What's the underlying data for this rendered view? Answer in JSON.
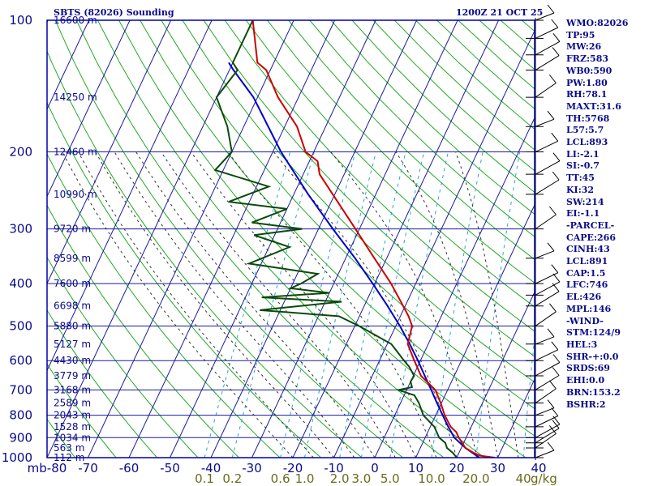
{
  "header": {
    "station": "SBTS (82026) Sounding",
    "datetime": "1200Z 21 OCT 25"
  },
  "indices": [
    "WMO:82026",
    "TP:95",
    "MW:26",
    "FRZ:583",
    "WB0:590",
    "PW:1.80",
    "RH:78.1",
    "MAXT:31.6",
    "TH:5768",
    "L57:5.7",
    "LCL:893",
    "LI:-2.1",
    "SI:-0.7",
    "TT:45",
    "KI:32",
    "SW:214",
    "EI:-1.1",
    "-PARCEL-",
    "CAPE:266",
    "CINH:43",
    "LCL:891",
    "CAP:1.5",
    "LFC:746",
    "EL:426",
    "MPL:146",
    "-WIND-",
    "STM:124/9",
    "HEL:3",
    "SHR-+:0.0",
    "SRDS:69",
    "EHI:0.0",
    "BRN:153.2",
    "BSHR:2"
  ],
  "colors": {
    "frame": "#0000aa",
    "grid": "#1a1aa0",
    "isotherm": "#1a1aa0",
    "dry_adiabat": "#22aa22",
    "moist_adiabat": "#333333",
    "mixing_ratio": "#2aa6d6",
    "temperature": "#cc0000",
    "dewpoint": "#0b4a0b",
    "parcel": "#0000cc",
    "wind_barb": "#000000",
    "title": "#0a0a8a",
    "mixing_label": "#6b6b1c"
  },
  "chart_data": {
    "type": "skew-t log-p sounding",
    "title": "SBTS (82026) Sounding",
    "valid_time": "1200Z 21 OCT 25",
    "pressure_axis": {
      "unit": "mb",
      "levels": [
        100,
        200,
        300,
        400,
        500,
        600,
        700,
        800,
        900,
        1000
      ],
      "range": [
        100,
        1000
      ],
      "log": true
    },
    "temperature_axis": {
      "unit": "C",
      "ticks": [
        -80,
        -70,
        -60,
        -50,
        -40,
        -30,
        -20,
        -10,
        0,
        10,
        20,
        30,
        40
      ],
      "tick_labels": [
        "mb-80",
        "-70",
        "-60",
        "-50",
        "-40",
        "-30",
        "-20",
        "-10",
        "0",
        "10",
        "20",
        "30",
        "40"
      ],
      "skew_deg_per_decade": 60
    },
    "height_labels": [
      {
        "p": 100,
        "label": "16600 m"
      },
      {
        "p": 150,
        "label": "14250 m"
      },
      {
        "p": 200,
        "label": "12460 m"
      },
      {
        "p": 250,
        "label": "10990 m"
      },
      {
        "p": 300,
        "label": "9720 m"
      },
      {
        "p": 350,
        "label": "8599 m"
      },
      {
        "p": 400,
        "label": "7600 m"
      },
      {
        "p": 450,
        "label": "6698 m"
      },
      {
        "p": 500,
        "label": "5880 m"
      },
      {
        "p": 550,
        "label": "5127 m"
      },
      {
        "p": 600,
        "label": "4430 m"
      },
      {
        "p": 650,
        "label": "3779 m"
      },
      {
        "p": 700,
        "label": "3168 m"
      },
      {
        "p": 750,
        "label": "2589 m"
      },
      {
        "p": 800,
        "label": "2043 m"
      },
      {
        "p": 850,
        "label": "1528 m"
      },
      {
        "p": 900,
        "label": "1034 m"
      },
      {
        "p": 950,
        "label": "563 m"
      },
      {
        "p": 1000,
        "label": "112 m"
      }
    ],
    "mixing_ratio_labels": [
      {
        "w": 0.1,
        "label": "0.1"
      },
      {
        "w": 0.2,
        "label": "0.2"
      },
      {
        "w": 0.6,
        "label": "0.6"
      },
      {
        "w": 1.0,
        "label": "1.0"
      },
      {
        "w": 2.0,
        "label": "2.0"
      },
      {
        "w": 3.0,
        "label": "3.0"
      },
      {
        "w": 5.0,
        "label": "5.0"
      },
      {
        "w": 10.0,
        "label": "10.0"
      },
      {
        "w": 20.0,
        "label": "20.0"
      },
      {
        "w": 40.0,
        "label": "40"
      }
    ],
    "mixing_ratio_unit": "g/kg",
    "dry_adiabats_theta_K": [
      180,
      190,
      200,
      210,
      220,
      230,
      240,
      250,
      260,
      270,
      280,
      290,
      300,
      310,
      320,
      330,
      340,
      350,
      360,
      370,
      380,
      390,
      400,
      410,
      420,
      430,
      440,
      450,
      460,
      470,
      480,
      490,
      500,
      520,
      540,
      560,
      580
    ],
    "moist_adiabats_start_T_C": [
      -20,
      -15,
      -10,
      -5,
      0,
      5,
      10,
      15,
      20,
      25,
      30,
      35
    ],
    "series": [
      {
        "name": "Temperature",
        "points": [
          [
            1000,
            29.3
          ],
          [
            990,
            25.5
          ],
          [
            975,
            23.6
          ],
          [
            950,
            21.0
          ],
          [
            925,
            19.6
          ],
          [
            900,
            18.2
          ],
          [
            875,
            17.0
          ],
          [
            850,
            15.0
          ],
          [
            800,
            12.2
          ],
          [
            750,
            9.8
          ],
          [
            700,
            7.0
          ],
          [
            650,
            1.9
          ],
          [
            600,
            -1.5
          ],
          [
            550,
            -5.0
          ],
          [
            500,
            -6.0
          ],
          [
            475,
            -8.0
          ],
          [
            450,
            -10.5
          ],
          [
            400,
            -16.0
          ],
          [
            350,
            -23.0
          ],
          [
            300,
            -31.0
          ],
          [
            250,
            -40.5
          ],
          [
            225,
            -46.0
          ],
          [
            210,
            -48.0
          ],
          [
            200,
            -52.0
          ],
          [
            175,
            -57.0
          ],
          [
            150,
            -65.0
          ],
          [
            130,
            -71.0
          ],
          [
            125,
            -74.0
          ],
          [
            100,
            -80.0
          ]
        ]
      },
      {
        "name": "Dewpoint",
        "points": [
          [
            1000,
            20.0
          ],
          [
            975,
            18.5
          ],
          [
            950,
            16.5
          ],
          [
            925,
            15.5
          ],
          [
            900,
            13.4
          ],
          [
            850,
            11.0
          ],
          [
            800,
            7.0
          ],
          [
            750,
            4.5
          ],
          [
            720,
            2.5
          ],
          [
            700,
            -2.0
          ],
          [
            690,
            1.0
          ],
          [
            670,
            0.0
          ],
          [
            650,
            0.2
          ],
          [
            620,
            -2.0
          ],
          [
            600,
            -4.0
          ],
          [
            550,
            -9.0
          ],
          [
            500,
            -19.0
          ],
          [
            475,
            -25.0
          ],
          [
            460,
            -45.0
          ],
          [
            440,
            -26.0
          ],
          [
            430,
            -46.0
          ],
          [
            420,
            -30.0
          ],
          [
            410,
            -40.0
          ],
          [
            400,
            -38.0
          ],
          [
            380,
            -35.0
          ],
          [
            360,
            -53.0
          ],
          [
            330,
            -45.0
          ],
          [
            310,
            -55.0
          ],
          [
            300,
            -44.0
          ],
          [
            290,
            -57.0
          ],
          [
            270,
            -50.0
          ],
          [
            260,
            -65.0
          ],
          [
            240,
            -57.0
          ],
          [
            220,
            -72.0
          ],
          [
            200,
            -70.0
          ],
          [
            175,
            -74.0
          ],
          [
            150,
            -80.0
          ],
          [
            130,
            -78.0
          ],
          [
            125,
            -80.0
          ],
          [
            100,
            -80.0
          ]
        ]
      },
      {
        "name": "Parcel",
        "points": [
          [
            1000,
            25.5
          ],
          [
            950,
            21.0
          ],
          [
            900,
            17.1
          ],
          [
            850,
            14.4
          ],
          [
            800,
            11.7
          ],
          [
            750,
            8.9
          ],
          [
            700,
            6.0
          ],
          [
            650,
            2.8
          ],
          [
            600,
            -0.6
          ],
          [
            550,
            -4.5
          ],
          [
            500,
            -9.0
          ],
          [
            450,
            -14.3
          ],
          [
            400,
            -20.5
          ],
          [
            350,
            -27.7
          ],
          [
            300,
            -36.5
          ],
          [
            250,
            -46.5
          ],
          [
            200,
            -58.0
          ],
          [
            150,
            -71.0
          ],
          [
            130,
            -79.0
          ],
          [
            125,
            -81.0
          ]
        ]
      }
    ],
    "wind_profile_mb": [
      100,
      110,
      120,
      130,
      150,
      175,
      200,
      225,
      250,
      300,
      350,
      400,
      425,
      450,
      500,
      550,
      600,
      650,
      700,
      750,
      800,
      850,
      900,
      925,
      950,
      1000
    ]
  }
}
